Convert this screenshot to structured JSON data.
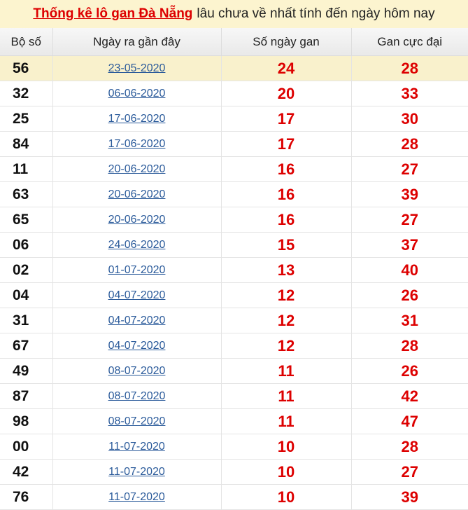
{
  "title": {
    "link": "Thống kê lô gan Đà Nẵng",
    "rest": "lâu chưa về nhất tính đến ngày hôm nay"
  },
  "headers": [
    "Bộ số",
    "Ngày ra gần đây",
    "Số ngày gan",
    "Gan cực đại"
  ],
  "colors": {
    "accent": "#dd0000",
    "link": "#2a5a9a",
    "highlight": "#f9f1cc"
  },
  "rows": [
    {
      "so": "56",
      "date": "23-05-2020",
      "gan": "24",
      "max": "28"
    },
    {
      "so": "32",
      "date": "06-06-2020",
      "gan": "20",
      "max": "33"
    },
    {
      "so": "25",
      "date": "17-06-2020",
      "gan": "17",
      "max": "30"
    },
    {
      "so": "84",
      "date": "17-06-2020",
      "gan": "17",
      "max": "28"
    },
    {
      "so": "11",
      "date": "20-06-2020",
      "gan": "16",
      "max": "27"
    },
    {
      "so": "63",
      "date": "20-06-2020",
      "gan": "16",
      "max": "39"
    },
    {
      "so": "65",
      "date": "20-06-2020",
      "gan": "16",
      "max": "27"
    },
    {
      "so": "06",
      "date": "24-06-2020",
      "gan": "15",
      "max": "37"
    },
    {
      "so": "02",
      "date": "01-07-2020",
      "gan": "13",
      "max": "40"
    },
    {
      "so": "04",
      "date": "04-07-2020",
      "gan": "12",
      "max": "26"
    },
    {
      "so": "31",
      "date": "04-07-2020",
      "gan": "12",
      "max": "31"
    },
    {
      "so": "67",
      "date": "04-07-2020",
      "gan": "12",
      "max": "28"
    },
    {
      "so": "49",
      "date": "08-07-2020",
      "gan": "11",
      "max": "26"
    },
    {
      "so": "87",
      "date": "08-07-2020",
      "gan": "11",
      "max": "42"
    },
    {
      "so": "98",
      "date": "08-07-2020",
      "gan": "11",
      "max": "47"
    },
    {
      "so": "00",
      "date": "11-07-2020",
      "gan": "10",
      "max": "28"
    },
    {
      "so": "42",
      "date": "11-07-2020",
      "gan": "10",
      "max": "27"
    },
    {
      "so": "76",
      "date": "11-07-2020",
      "gan": "10",
      "max": "39"
    }
  ]
}
